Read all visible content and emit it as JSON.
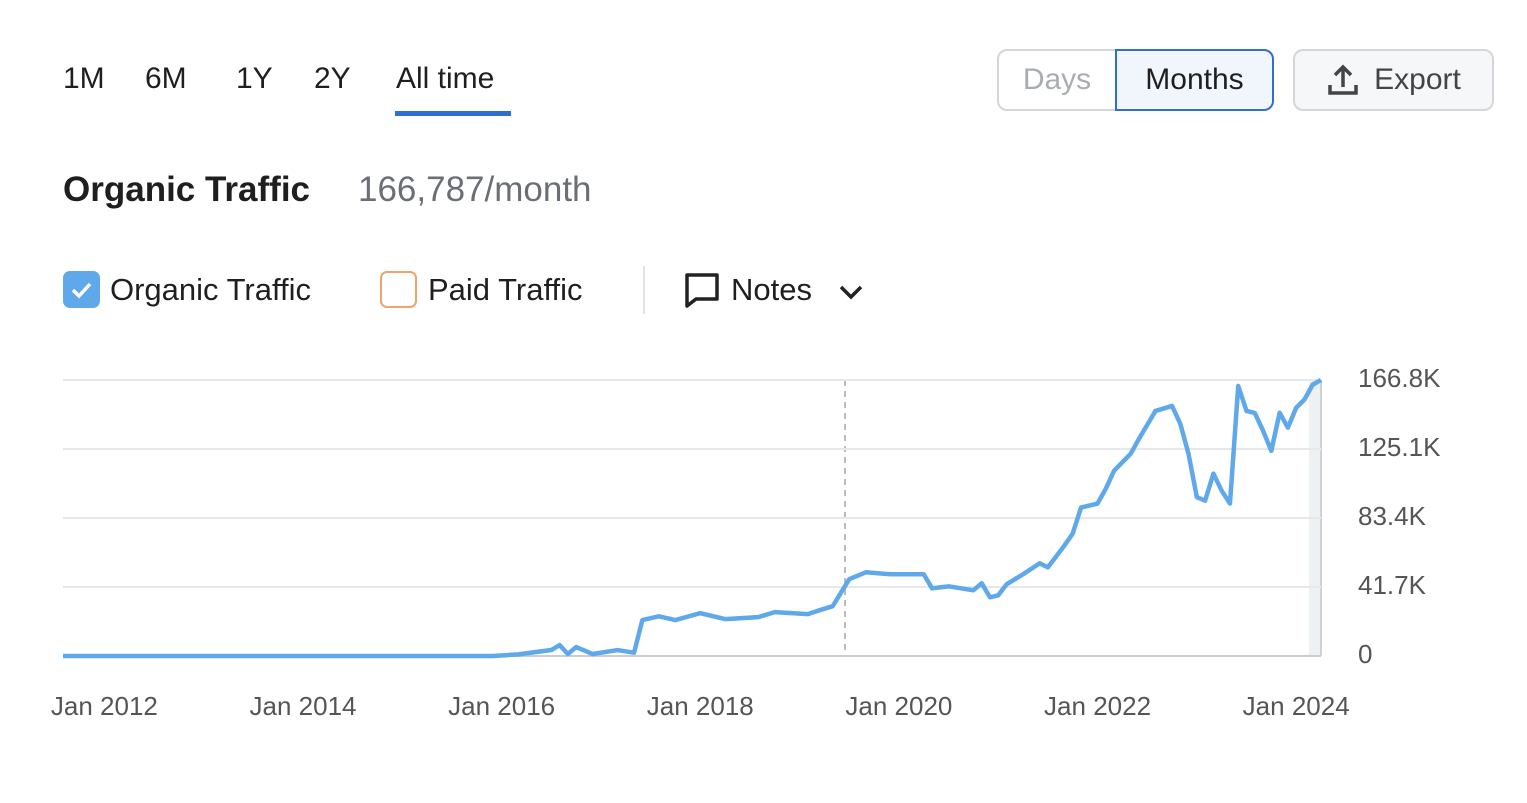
{
  "toolbar": {
    "periods": [
      "1M",
      "6M",
      "1Y",
      "2Y",
      "All time"
    ],
    "granularity": [
      "Days",
      "Months"
    ],
    "export": "Export"
  },
  "header": {
    "title": "Organic Traffic",
    "value": "166,787/month"
  },
  "filters": {
    "paid": "Paid Traffic",
    "notes": "Notes"
  },
  "chart_data": {
    "type": "line",
    "x": [
      "2011-08",
      "2015-12",
      "2016-03",
      "2016-07",
      "2016-08",
      "2016-09",
      "2016-10",
      "2016-12",
      "2017-03",
      "2017-05",
      "2017-06",
      "2017-08",
      "2017-10",
      "2018-01",
      "2018-04",
      "2018-08",
      "2018-10",
      "2019-02",
      "2019-03",
      "2019-05",
      "2019-07",
      "2019-09",
      "2019-12",
      "2020-04",
      "2020-05",
      "2020-07",
      "2020-10",
      "2020-11",
      "2020-12",
      "2021-01",
      "2021-02",
      "2021-04",
      "2021-06",
      "2021-07",
      "2021-09",
      "2021-10",
      "2021-11",
      "2022-01",
      "2022-02",
      "2022-03",
      "2022-05",
      "2022-06",
      "2022-08",
      "2022-10",
      "2022-11",
      "2022-12",
      "2023-01",
      "2023-02",
      "2023-03",
      "2023-04",
      "2023-05",
      "2023-06",
      "2023-07",
      "2023-08",
      "2023-09",
      "2023-10",
      "2023-11",
      "2023-12",
      "2024-01",
      "2024-02",
      "2024-03",
      "2024-04"
    ],
    "series": [
      {
        "name": "Organic Traffic",
        "color": "#5fa8ea",
        "values": [
          0,
          0,
          1000,
          3600,
          6600,
          1200,
          5400,
          1200,
          3600,
          2000,
          21700,
          24000,
          21700,
          25900,
          22300,
          23500,
          26500,
          25300,
          27000,
          30100,
          46400,
          50600,
          49400,
          49400,
          40900,
          42100,
          39700,
          44000,
          35500,
          36700,
          43300,
          49400,
          56000,
          53600,
          66800,
          74000,
          89700,
          92100,
          101100,
          112000,
          122200,
          131200,
          148100,
          151100,
          140300,
          122000,
          96000,
          93900,
          110200,
          99900,
          92100,
          163200,
          148100,
          146900,
          136100,
          124000,
          147000,
          138000,
          150000,
          155000,
          164000,
          166787
        ]
      }
    ],
    "xlim": [
      "2011-08",
      "2024-04"
    ],
    "xticks": [
      {
        "value": "2012-01",
        "label": "Jan 2012"
      },
      {
        "value": "2014-01",
        "label": "Jan 2014"
      },
      {
        "value": "2016-01",
        "label": "Jan 2016"
      },
      {
        "value": "2018-01",
        "label": "Jan 2018"
      },
      {
        "value": "2020-01",
        "label": "Jan 2020"
      },
      {
        "value": "2022-01",
        "label": "Jan 2022"
      },
      {
        "value": "2024-01",
        "label": "Jan 2024"
      }
    ],
    "ylim": [
      0,
      166787
    ],
    "yticks": [
      0,
      {
        "value": 41697,
        "label": "41.7K"
      },
      {
        "value": 83394,
        "label": "83.4K"
      },
      {
        "value": 125090,
        "label": "125.1K"
      },
      {
        "value": 166787,
        "label": "166.8K"
      }
    ],
    "grid": true
  }
}
